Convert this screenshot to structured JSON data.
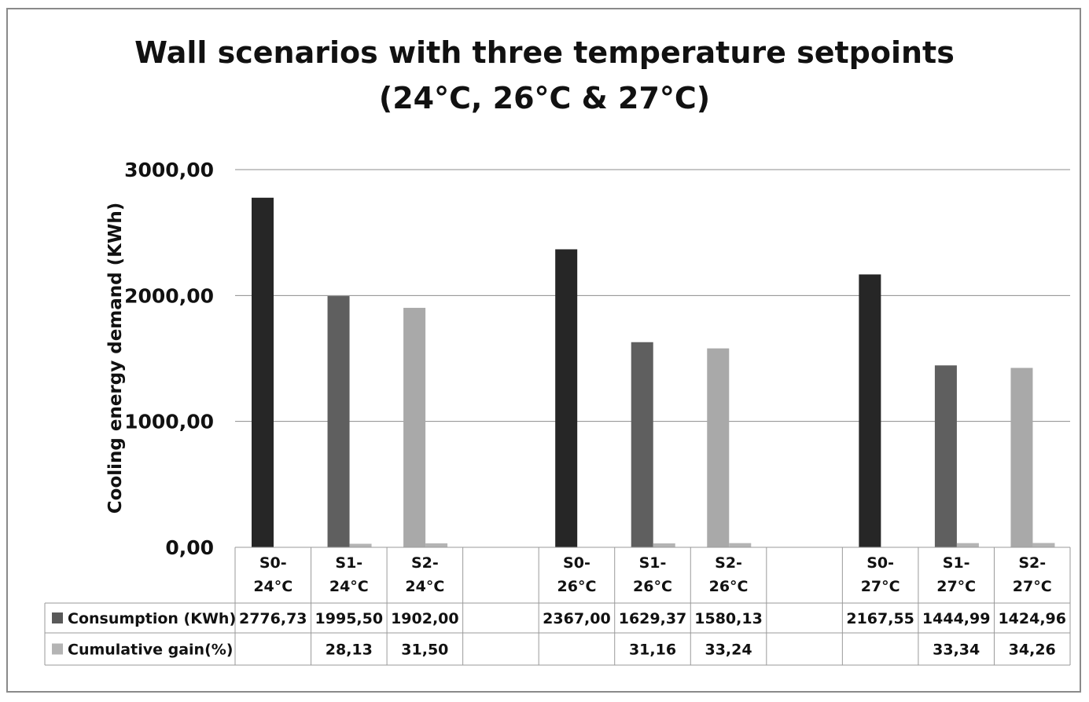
{
  "chart_data": {
    "type": "bar",
    "title_line1": "Wall scenarios with three temperature setpoints",
    "title_line2": "(24°C, 26°C & 27°C)",
    "ylabel": "Cooling energy demand (KWh)",
    "ylim": [
      0,
      3000
    ],
    "y_ticks": [
      "0,00",
      "1000,00",
      "2000,00",
      "3000,00"
    ],
    "y_tick_values": [
      0,
      1000,
      2000,
      3000
    ],
    "grid": true,
    "legend_placement": "data-table",
    "categories": [
      [
        "S0-",
        "24°C"
      ],
      [
        "S1-",
        "24°C"
      ],
      [
        "S2-",
        "24°C"
      ],
      [
        "",
        ""
      ],
      [
        "S0-",
        "26°C"
      ],
      [
        "S1-",
        "26°C"
      ],
      [
        "S2-",
        "26°C"
      ],
      [
        "",
        ""
      ],
      [
        "S0-",
        "27°C"
      ],
      [
        "S1-",
        "27°C"
      ],
      [
        "S2-",
        "27°C"
      ]
    ],
    "series": [
      {
        "name": "Consumption (KWh)",
        "values": [
          2776.73,
          1995.5,
          1902.0,
          null,
          2367.0,
          1629.37,
          1580.13,
          null,
          2167.55,
          1444.99,
          1424.96
        ],
        "labels": [
          "2776,73",
          "1995,50",
          "1902,00",
          "",
          "2367,00",
          "1629,37",
          "1580,13",
          "",
          "2167,55",
          "1444,99",
          "1424,96"
        ]
      },
      {
        "name": "Cumulative gain(%)",
        "values": [
          null,
          28.13,
          31.5,
          null,
          null,
          31.16,
          33.24,
          null,
          null,
          33.34,
          34.26
        ],
        "labels": [
          "",
          "28,13",
          "31,50",
          "",
          "",
          "31,16",
          "33,24",
          "",
          "",
          "33,34",
          "34,26"
        ]
      }
    ],
    "colors": {
      "s0": "#262626",
      "s1": "#5f5f5f",
      "s2": "#a9a9a9",
      "gain": "#b4b4b4",
      "legend_consumption": "#595959",
      "legend_gain": "#b4b4b4",
      "grid": "#8c8c8c",
      "table_border": "#9a9a9a"
    }
  }
}
